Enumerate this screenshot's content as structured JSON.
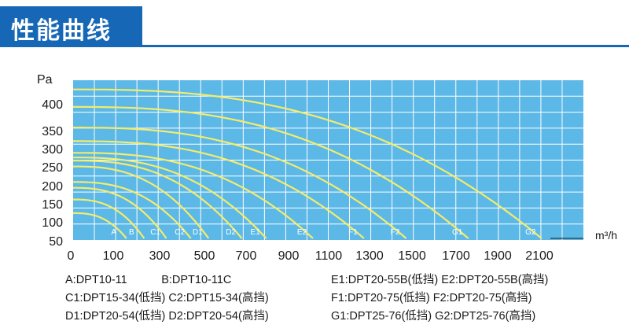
{
  "header": {
    "title": "性能曲线"
  },
  "chart_data": {
    "type": "line",
    "ylabel": "Pa",
    "xlabel": "m³/h",
    "x_ticks": [
      "0",
      "100",
      "300",
      "500",
      "700",
      "900",
      "1100",
      "1300",
      "1500",
      "1700",
      "1900",
      "2100"
    ],
    "y_ticks": [
      "50",
      "100",
      "150",
      "200",
      "250",
      "300",
      "350",
      "400"
    ],
    "xlim": [
      0,
      2100
    ],
    "ylim": [
      50,
      430
    ],
    "grid": true,
    "background_color": "#5cb8e6",
    "grid_color": "#ffffff",
    "curve_color": "#f3ec6c",
    "series": [
      {
        "name": "A",
        "max_pressure": 115,
        "max_flow": 240
      },
      {
        "name": "B",
        "max_pressure": 150,
        "max_flow": 320
      },
      {
        "name": "C1",
        "max_pressure": 180,
        "max_flow": 420
      },
      {
        "name": "C2",
        "max_pressure": 195,
        "max_flow": 530
      },
      {
        "name": "D1",
        "max_pressure": 235,
        "max_flow": 610
      },
      {
        "name": "D2",
        "max_pressure": 250,
        "max_flow": 760
      },
      {
        "name": "E1",
        "max_pressure": 258,
        "max_flow": 870
      },
      {
        "name": "E2",
        "max_pressure": 270,
        "max_flow": 1080
      },
      {
        "name": "F1",
        "max_pressure": 300,
        "max_flow": 1310
      },
      {
        "name": "F2",
        "max_pressure": 335,
        "max_flow": 1500
      },
      {
        "name": "G1",
        "max_pressure": 388,
        "max_flow": 1780
      },
      {
        "name": "G2",
        "max_pressure": 433,
        "max_flow": 2110
      }
    ]
  },
  "legend": {
    "left": [
      "A:DPT10-11　　　B:DPT10-11C",
      "C1:DPT15-34(低挡) C2:DPT15-34(高挡)",
      "D1:DPT20-54(低挡) D2:DPT20-54(高挡)"
    ],
    "right": [
      "E1:DPT20-55B(低挡) E2:DPT20-55B(高挡)",
      "F1:DPT20-75(低挡) F2:DPT20-75(高挡)",
      "G1:DPT25-76(低挡) G2:DPT25-76(高挡)"
    ]
  }
}
